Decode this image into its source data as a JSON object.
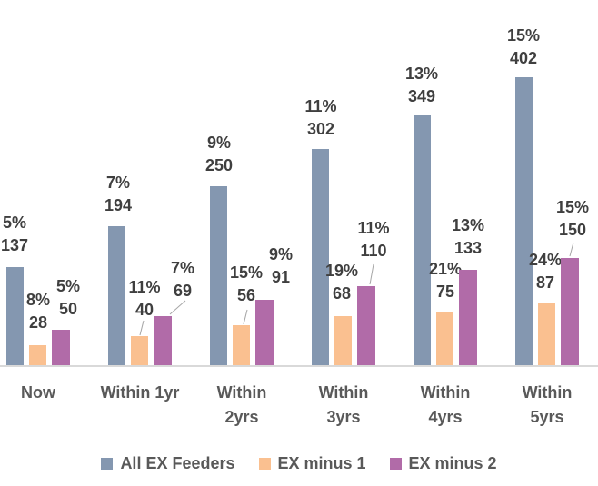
{
  "chart_data": {
    "type": "bar",
    "title": "",
    "xlabel": "",
    "ylabel": "",
    "grid": false,
    "legend_position": "bottom",
    "data_label_format": "percent above count",
    "ylim": [
      0,
      420
    ],
    "categories": [
      "Now",
      "Within 1yr",
      "Within\n2yrs",
      "Within\n3yrs",
      "Within\n4yrs",
      "Within\n5yrs"
    ],
    "series": [
      {
        "name": "All EX Feeders",
        "color": "#8497B0",
        "values": [
          137,
          194,
          250,
          302,
          349,
          402
        ],
        "percent_labels": [
          "5%",
          "7%",
          "9%",
          "11%",
          "13%",
          "15%"
        ]
      },
      {
        "name": "EX minus 1",
        "color": "#FAC090",
        "values": [
          28,
          40,
          56,
          68,
          75,
          87
        ],
        "percent_labels": [
          "8%",
          "11%",
          "15%",
          "19%",
          "21%",
          "24%"
        ]
      },
      {
        "name": "EX minus 2",
        "color": "#B16BA8",
        "values": [
          50,
          69,
          91,
          110,
          133,
          150
        ],
        "percent_labels": [
          "5%",
          "7%",
          "9%",
          "11%",
          "13%",
          "15%"
        ]
      }
    ],
    "colors": {
      "axis_line": "#D9D9D9",
      "leader_line": "#A6A6A6",
      "data_label_text": "#3F3F3F",
      "category_text": "#595959",
      "legend_text": "#595959",
      "background": "#FFFFFF"
    }
  }
}
